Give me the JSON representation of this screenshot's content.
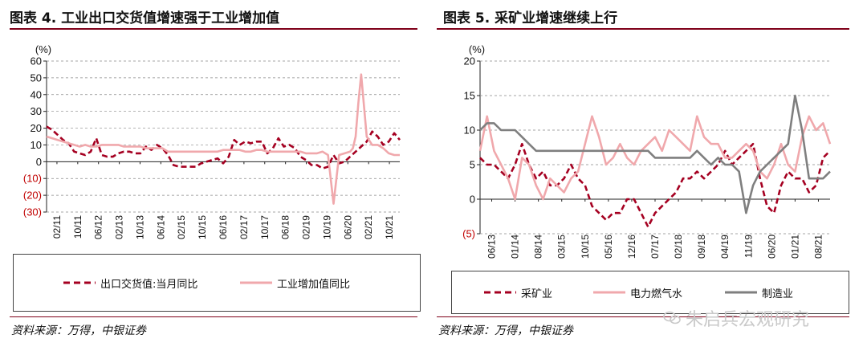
{
  "left": {
    "title": "图表 4. 工业出口交货值增速强于工业增加值",
    "source": "资料来源：万得，中银证券",
    "chart_data": {
      "type": "line",
      "ylabel": "(%)",
      "ylim": [
        -30,
        60
      ],
      "yticks": [
        "60",
        "50",
        "40",
        "30",
        "20",
        "10",
        "0",
        "(10)",
        "(20)",
        "(30)"
      ],
      "ytick_values": [
        60,
        50,
        40,
        30,
        20,
        10,
        0,
        -10,
        -20,
        -30
      ],
      "xtick_labels": [
        "02/11",
        "10/11",
        "06/12",
        "02/13",
        "10/13",
        "06/14",
        "02/15",
        "10/15",
        "06/16",
        "02/17",
        "10/17",
        "06/18",
        "02/19",
        "10/19",
        "06/20",
        "02/21",
        "10/21"
      ],
      "x_index_range": [
        0,
        128
      ],
      "legend": [
        "出口交货值:当月同比",
        "工业增加值同比"
      ],
      "series": [
        {
          "name": "出口交货值:当月同比",
          "color": "#a50021",
          "dash": true,
          "x": [
            0,
            2,
            4,
            6,
            8,
            10,
            12,
            14,
            16,
            18,
            20,
            22,
            24,
            26,
            28,
            30,
            32,
            34,
            36,
            38,
            40,
            42,
            44,
            46,
            48,
            50,
            52,
            54,
            56,
            58,
            60,
            62,
            64,
            66,
            68,
            70,
            72,
            74,
            76,
            78,
            80,
            82,
            84,
            86,
            88,
            90,
            92,
            94,
            96,
            98,
            100,
            102,
            104,
            106,
            108,
            110,
            112,
            114,
            116,
            118,
            120,
            122,
            124,
            126,
            128
          ],
          "values": [
            21,
            19,
            16,
            13,
            11,
            6,
            5,
            4,
            6,
            14,
            4,
            3,
            3,
            5,
            6,
            6,
            5,
            5,
            9,
            7,
            10,
            8,
            4,
            -2,
            -3,
            -3,
            -3,
            -3,
            -1,
            0,
            1,
            2,
            -1,
            3,
            13,
            10,
            12,
            11,
            12,
            12,
            5,
            8,
            14,
            9,
            10,
            8,
            3,
            1,
            -2,
            -2,
            -4,
            -3,
            4,
            -1,
            0,
            3,
            6,
            9,
            12,
            18,
            15,
            10,
            12,
            17,
            13
          ]
        },
        {
          "name": "工业增加值同比",
          "color": "#f0a8ac",
          "dash": false,
          "x": [
            0,
            2,
            4,
            6,
            8,
            10,
            12,
            14,
            16,
            18,
            20,
            22,
            24,
            26,
            28,
            30,
            32,
            34,
            36,
            38,
            40,
            42,
            44,
            46,
            48,
            50,
            52,
            54,
            56,
            58,
            60,
            62,
            64,
            66,
            68,
            70,
            72,
            74,
            76,
            78,
            80,
            82,
            84,
            86,
            88,
            90,
            92,
            94,
            96,
            98,
            100,
            102,
            104,
            106,
            108,
            110,
            111,
            112,
            113,
            114,
            116,
            118,
            120,
            122,
            124,
            126,
            128
          ],
          "values": [
            15,
            14,
            13,
            12,
            11,
            10,
            9,
            10,
            9,
            9,
            10,
            10,
            10,
            10,
            9,
            9,
            9,
            9,
            8,
            8,
            8,
            8,
            6,
            6,
            6,
            6,
            6,
            6,
            6,
            6,
            6,
            6,
            7,
            7,
            7,
            7,
            6,
            6,
            7,
            7,
            6,
            6,
            6,
            6,
            6,
            6,
            6,
            5,
            5,
            5,
            6,
            4,
            -25,
            4,
            5,
            6,
            8,
            15,
            35,
            52,
            15,
            10,
            10,
            8,
            5,
            4,
            4
          ]
        }
      ]
    }
  },
  "right": {
    "title": "图表 5. 采矿业增速继续上行",
    "source": "资料来源：万得，中银证券",
    "watermark": "朱启兵宏观研究",
    "chart_data": {
      "type": "line",
      "ylabel": "(%)",
      "ylim": [
        -5,
        20
      ],
      "yticks": [
        "20",
        "15",
        "10",
        "5",
        "0",
        "(5)"
      ],
      "ytick_values": [
        20,
        15,
        10,
        5,
        0,
        -5
      ],
      "xtick_labels": [
        "06/13",
        "01/14",
        "08/14",
        "03/15",
        "10/15",
        "05/16",
        "12/16",
        "07/17",
        "02/18",
        "09/18",
        "04/19",
        "11/19",
        "06/20",
        "01/21",
        "08/21"
      ],
      "x_index_range": [
        0,
        100
      ],
      "legend": [
        "采矿业",
        "电力燃气水",
        "制造业"
      ],
      "series": [
        {
          "name": "采矿业",
          "color": "#a50021",
          "dash": true,
          "x": [
            0,
            2,
            4,
            6,
            8,
            10,
            12,
            14,
            16,
            18,
            20,
            22,
            24,
            26,
            28,
            30,
            32,
            34,
            36,
            38,
            40,
            42,
            44,
            46,
            48,
            50,
            52,
            54,
            56,
            58,
            60,
            62,
            64,
            66,
            68,
            70,
            72,
            74,
            76,
            78,
            80,
            82,
            84,
            86,
            88,
            90,
            92,
            94,
            96,
            98,
            100
          ],
          "values": [
            6,
            5,
            5,
            4,
            3,
            5,
            8,
            5,
            3,
            4,
            2,
            2,
            3,
            5,
            3,
            2,
            -1,
            -2,
            -3,
            -2,
            -2,
            0,
            0,
            -2,
            -4,
            -2,
            -1,
            0,
            1,
            3,
            3,
            4,
            3,
            4,
            5,
            7,
            5,
            6,
            7,
            8,
            3,
            -1,
            -2,
            2,
            4,
            3,
            3,
            1,
            2,
            6,
            7
          ]
        },
        {
          "name": "电力燃气水",
          "color": "#f0a8ac",
          "dash": false,
          "x": [
            0,
            2,
            4,
            6,
            8,
            10,
            12,
            14,
            16,
            18,
            20,
            22,
            24,
            26,
            28,
            30,
            32,
            34,
            36,
            38,
            40,
            42,
            44,
            46,
            48,
            50,
            52,
            54,
            56,
            58,
            60,
            62,
            64,
            66,
            68,
            70,
            72,
            74,
            76,
            78,
            80,
            82,
            84,
            86,
            88,
            90,
            92,
            94,
            96,
            98,
            100
          ],
          "values": [
            7,
            12,
            7,
            5,
            3,
            0,
            6,
            5,
            2,
            0,
            3,
            2,
            1,
            3,
            4,
            8,
            12,
            9,
            5,
            6,
            8,
            6,
            5,
            7,
            8,
            9,
            7,
            10,
            9,
            8,
            7,
            12,
            9,
            8,
            8,
            6,
            6,
            7,
            8,
            7,
            4,
            3,
            5,
            8,
            5,
            4,
            9,
            12,
            10,
            11,
            8
          ]
        },
        {
          "name": "制造业",
          "color": "#7f7f7f",
          "dash": false,
          "x": [
            0,
            2,
            4,
            6,
            8,
            10,
            12,
            14,
            16,
            18,
            20,
            22,
            24,
            26,
            28,
            30,
            32,
            34,
            36,
            38,
            40,
            42,
            44,
            46,
            48,
            50,
            52,
            54,
            56,
            58,
            60,
            62,
            64,
            66,
            68,
            70,
            72,
            74,
            76,
            78,
            80,
            82,
            84,
            86,
            88,
            90,
            92,
            94,
            96,
            98,
            100
          ],
          "values": [
            10,
            11,
            11,
            10,
            10,
            10,
            9,
            8,
            7,
            7,
            7,
            7,
            7,
            7,
            7,
            7,
            7,
            7,
            7,
            7,
            7,
            7,
            7,
            7,
            7,
            6,
            6,
            6,
            6,
            6,
            6,
            7,
            6,
            5,
            6,
            5,
            5,
            4,
            -2,
            2,
            4,
            5,
            6,
            7,
            8,
            15,
            10,
            3,
            3,
            3,
            4
          ]
        }
      ]
    }
  }
}
